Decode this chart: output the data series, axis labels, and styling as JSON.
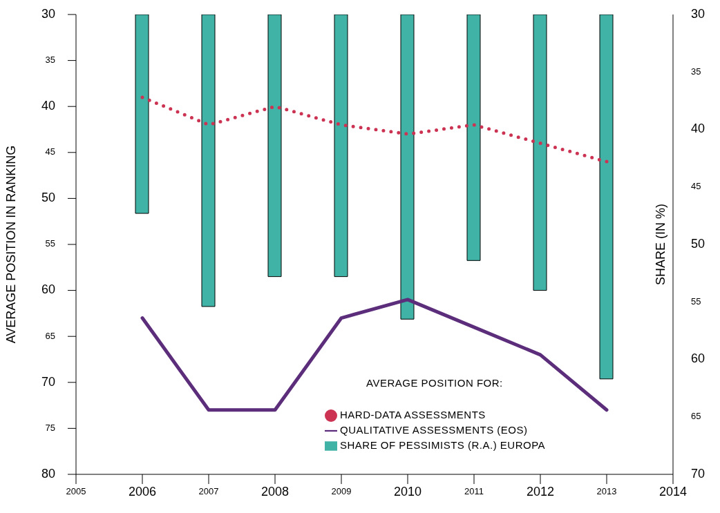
{
  "chart_data": {
    "type": "line",
    "ylabel": "AVERAGE POSITION IN RANKING",
    "y2label": "SHARE (IN %)",
    "legend_title": "AVERAGE POSITION FOR:",
    "x": [
      2006,
      2007,
      2008,
      2009,
      2010,
      2011,
      2012,
      2013
    ],
    "xlim": [
      2005,
      2014
    ],
    "xticks": [
      2005,
      2006,
      2007,
      2008,
      2009,
      2010,
      2011,
      2012,
      2013,
      2014
    ],
    "ylim": [
      80,
      30
    ],
    "yticks": [
      30,
      35,
      40,
      45,
      50,
      55,
      60,
      65,
      70,
      75,
      80
    ],
    "y2lim": [
      70,
      30
    ],
    "y2ticks": [
      30,
      35,
      40,
      45,
      50,
      55,
      60,
      65,
      70
    ],
    "series": [
      {
        "name": "QUALITATIVE ASSESSMENTS (EOS)",
        "color": "#5b2d7a",
        "line_style": "solid",
        "values": [
          63,
          73,
          73,
          63,
          61,
          64,
          67,
          73
        ]
      },
      {
        "name": "HARD-DATA ASSESSMENTS",
        "color": "#cc3352",
        "line_style": "dotted",
        "values": [
          39,
          42,
          40,
          42,
          43,
          42,
          44,
          46
        ]
      },
      {
        "name": "SHARE OF PESSIMISTS (R.A.) EUROPA",
        "type": "bar",
        "axis": "y2",
        "color": "#40b3a6",
        "values": [
          47.3,
          55.4,
          52.8,
          52.8,
          56.5,
          51.4,
          54,
          61.7
        ]
      }
    ],
    "marker": "none",
    "legend": "bottom right"
  }
}
